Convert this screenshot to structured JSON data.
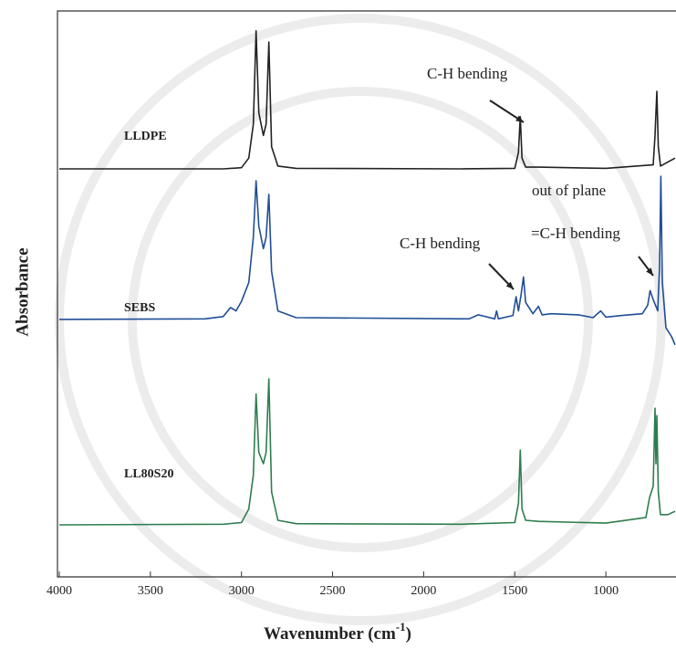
{
  "chart_data": {
    "type": "line",
    "xlabel": {
      "text": "Wavenumber (cm",
      "sup": "-1",
      "end": ")"
    },
    "ylabel": "Absorbance",
    "xlim": [
      4000,
      615
    ],
    "ylim": [
      0,
      100
    ],
    "xticks": [
      4000,
      3500,
      3000,
      2500,
      2000,
      1500,
      1000
    ],
    "series": [
      {
        "name": "LLDPE",
        "color": "#222222",
        "x": [
          4000,
          3100,
          3000,
          2960,
          2935,
          2920,
          2905,
          2880,
          2865,
          2850,
          2835,
          2800,
          2700,
          1800,
          1500,
          1480,
          1470,
          1460,
          1440,
          1370,
          1000,
          740,
          730,
          720,
          712,
          700,
          620
        ],
        "values": [
          72.1,
          72.1,
          72.3,
          74,
          80,
          96.5,
          82,
          78,
          80,
          94.5,
          76,
          72.6,
          72.2,
          72.1,
          72.2,
          75,
          81.3,
          74,
          72.4,
          72.4,
          72.2,
          72.8,
          78,
          85.8,
          76,
          72.6,
          74
        ]
      },
      {
        "name": "SEBS",
        "color": "#1f4e96",
        "x": [
          4000,
          3200,
          3100,
          3060,
          3030,
          3000,
          2960,
          2935,
          2920,
          2905,
          2880,
          2865,
          2850,
          2835,
          2800,
          2700,
          1750,
          1700,
          1610,
          1600,
          1590,
          1510,
          1493,
          1480,
          1465,
          1452,
          1440,
          1400,
          1370,
          1350,
          1300,
          1150,
          1070,
          1028,
          1000,
          910,
          800,
          770,
          757,
          740,
          715,
          705,
          698,
          690,
          670,
          640,
          620
        ],
        "values": [
          45.5,
          45.6,
          46,
          47.6,
          47,
          48.7,
          52,
          60,
          70,
          62,
          58,
          60,
          67.6,
          54,
          47,
          45.8,
          45.6,
          46.3,
          45.6,
          47,
          45.6,
          46.2,
          49.5,
          47,
          50,
          53,
          48.5,
          46.5,
          47.8,
          46.3,
          46.5,
          46.3,
          45.8,
          47,
          45.9,
          46.2,
          46.5,
          48,
          50.6,
          49,
          47,
          55,
          70.8,
          52,
          44,
          42.5,
          41
        ]
      },
      {
        "name": "LL80S20",
        "color": "#2e7d4f",
        "x": [
          4000,
          3100,
          3000,
          2960,
          2935,
          2920,
          2905,
          2880,
          2865,
          2850,
          2835,
          2800,
          2700,
          1800,
          1500,
          1480,
          1470,
          1460,
          1440,
          1370,
          1000,
          780,
          760,
          740,
          730,
          725,
          720,
          712,
          700,
          660,
          620
        ],
        "values": [
          9.2,
          9.3,
          9.6,
          12,
          18,
          32.3,
          22,
          20,
          22,
          35,
          15,
          10,
          9.4,
          9.3,
          9.6,
          13,
          22.4,
          12,
          10,
          9.8,
          9.5,
          10.5,
          14,
          16,
          29.8,
          20,
          28.5,
          15,
          11,
          11,
          11.6
        ]
      }
    ],
    "annotations": [
      "C-H bending",
      "out of plane",
      "=C-H bending",
      "C-H bending"
    ]
  }
}
